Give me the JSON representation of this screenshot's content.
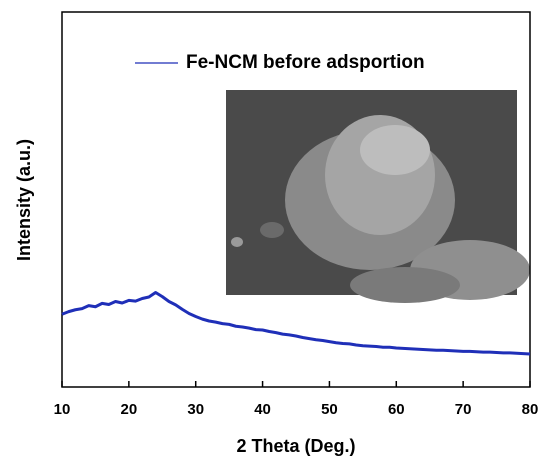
{
  "chart_data": {
    "type": "line",
    "xlabel": "2 Theta (Deg.)",
    "ylabel": "Intensity (a.u.)",
    "x": [
      10,
      11,
      12,
      13,
      14,
      15,
      16,
      17,
      18,
      19,
      20,
      21,
      22,
      23,
      24,
      25,
      26,
      27,
      28,
      29,
      30,
      31,
      32,
      33,
      34,
      35,
      36,
      37,
      38,
      39,
      40,
      41,
      42,
      43,
      44,
      45,
      46,
      47,
      48,
      49,
      50,
      51,
      52,
      53,
      54,
      55,
      56,
      57,
      58,
      59,
      60,
      61,
      62,
      63,
      64,
      65,
      66,
      67,
      68,
      69,
      70,
      71,
      72,
      73,
      74,
      75,
      76,
      77,
      78,
      79,
      80
    ],
    "series": [
      {
        "name": "Fe-NCM before adsportion",
        "color": "#1f2fb8",
        "values": [
          19.4,
          20.1,
          20.6,
          20.9,
          21.7,
          21.4,
          22.3,
          22.0,
          22.8,
          22.4,
          23.1,
          22.9,
          23.6,
          24.0,
          25.2,
          24.1,
          22.8,
          21.9,
          20.7,
          19.6,
          18.8,
          18.1,
          17.6,
          17.3,
          16.9,
          16.7,
          16.2,
          16.0,
          15.7,
          15.3,
          15.2,
          14.8,
          14.5,
          14.1,
          13.9,
          13.6,
          13.2,
          12.9,
          12.6,
          12.4,
          12.1,
          11.8,
          11.6,
          11.5,
          11.2,
          11.0,
          10.9,
          10.8,
          10.6,
          10.6,
          10.4,
          10.3,
          10.2,
          10.1,
          10.0,
          9.9,
          9.8,
          9.8,
          9.7,
          9.6,
          9.5,
          9.5,
          9.4,
          9.3,
          9.3,
          9.2,
          9.1,
          9.1,
          9.0,
          8.9,
          8.8
        ]
      }
    ],
    "xlim": [
      10,
      80
    ],
    "xticks": [
      10,
      20,
      30,
      40,
      50,
      60,
      70,
      80
    ],
    "ylim": [
      0,
      100
    ],
    "legend": "upper right"
  }
}
